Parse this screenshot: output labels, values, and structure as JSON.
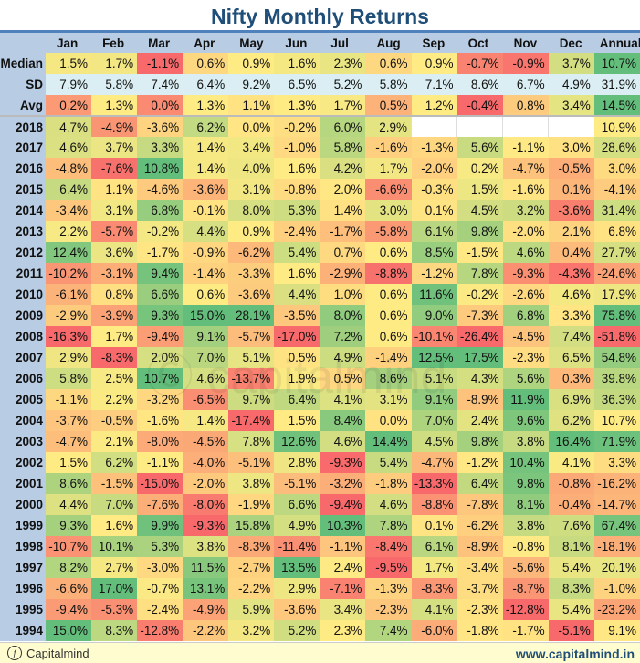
{
  "title": "Nifty Monthly Returns",
  "footer": {
    "brand": "Capitalmind",
    "url": "www.capitalmind.in"
  },
  "colors": {
    "red": "#F8696B",
    "yellow": "#FFEB84",
    "green": "#63BE7B",
    "sd": "#DAEEF3",
    "header": "#B8CCE4"
  },
  "chart_data": {
    "type": "heatmap",
    "title": "Nifty Monthly Returns",
    "unit": "%",
    "columns": [
      "Jan",
      "Feb",
      "Mar",
      "Apr",
      "May",
      "Jun",
      "Jul",
      "Aug",
      "Sep",
      "Oct",
      "Nov",
      "Dec",
      "Annual"
    ],
    "summary": [
      {
        "label": "Median",
        "values": [
          1.5,
          1.7,
          -1.1,
          0.6,
          0.9,
          1.6,
          2.3,
          0.6,
          0.9,
          -0.7,
          -0.9,
          3.7,
          10.7
        ]
      },
      {
        "label": "SD",
        "values": [
          7.9,
          5.8,
          7.4,
          6.4,
          9.2,
          6.5,
          5.2,
          5.8,
          7.1,
          8.6,
          6.7,
          4.9,
          31.9
        ]
      },
      {
        "label": "Avg",
        "values": [
          0.2,
          1.3,
          0.0,
          1.3,
          1.1,
          1.3,
          1.7,
          0.5,
          1.2,
          -0.4,
          0.8,
          3.4,
          14.5
        ]
      }
    ],
    "rows": [
      {
        "label": "2018",
        "values": [
          4.7,
          -4.9,
          -3.6,
          6.2,
          0.0,
          -0.2,
          6.0,
          2.9,
          null,
          null,
          null,
          null,
          10.9
        ]
      },
      {
        "label": "2017",
        "values": [
          4.6,
          3.7,
          3.3,
          1.4,
          3.4,
          -1.0,
          5.8,
          -1.6,
          -1.3,
          5.6,
          -1.1,
          3.0,
          28.6
        ]
      },
      {
        "label": "2016",
        "values": [
          -4.8,
          -7.6,
          10.8,
          1.4,
          4.0,
          1.6,
          4.2,
          1.7,
          -2.0,
          0.2,
          -4.7,
          -0.5,
          3.0
        ]
      },
      {
        "label": "2015",
        "values": [
          6.4,
          1.1,
          -4.6,
          -3.6,
          3.1,
          -0.8,
          2.0,
          -6.6,
          -0.3,
          1.5,
          -1.6,
          0.1,
          -4.1
        ]
      },
      {
        "label": "2014",
        "values": [
          -3.4,
          3.1,
          6.8,
          -0.1,
          8.0,
          5.3,
          1.4,
          3.0,
          0.1,
          4.5,
          3.2,
          -3.6,
          31.4
        ]
      },
      {
        "label": "2013",
        "values": [
          2.2,
          -5.7,
          -0.2,
          4.4,
          0.9,
          -2.4,
          -1.7,
          -5.8,
          6.1,
          9.8,
          -2.0,
          2.1,
          6.8
        ]
      },
      {
        "label": "2012",
        "values": [
          12.4,
          3.6,
          -1.7,
          -0.9,
          -6.2,
          5.4,
          0.7,
          0.6,
          8.5,
          -1.5,
          4.6,
          0.4,
          27.7
        ]
      },
      {
        "label": "2011",
        "values": [
          -10.2,
          -3.1,
          9.4,
          -1.4,
          -3.3,
          1.6,
          -2.9,
          -8.8,
          -1.2,
          7.8,
          -9.3,
          -4.3,
          -24.6
        ]
      },
      {
        "label": "2010",
        "values": [
          -6.1,
          0.8,
          6.6,
          0.6,
          -3.6,
          4.4,
          1.0,
          0.6,
          11.6,
          -0.2,
          -2.6,
          4.6,
          17.9
        ]
      },
      {
        "label": "2009",
        "values": [
          -2.9,
          -3.9,
          9.3,
          15.0,
          28.1,
          -3.5,
          8.0,
          0.6,
          9.0,
          -7.3,
          6.8,
          3.3,
          75.8
        ]
      },
      {
        "label": "2008",
        "values": [
          -16.3,
          1.7,
          -9.4,
          9.1,
          -5.7,
          -17.0,
          7.2,
          0.6,
          -10.1,
          -26.4,
          -4.5,
          7.4,
          -51.8
        ]
      },
      {
        "label": "2007",
        "values": [
          2.9,
          -8.3,
          2.0,
          7.0,
          5.1,
          0.5,
          4.9,
          -1.4,
          12.5,
          17.5,
          -2.3,
          6.5,
          54.8
        ]
      },
      {
        "label": "2006",
        "values": [
          5.8,
          2.5,
          10.7,
          4.6,
          -13.7,
          1.9,
          0.5,
          8.6,
          5.1,
          4.3,
          5.6,
          0.3,
          39.8
        ]
      },
      {
        "label": "2005",
        "values": [
          -1.1,
          2.2,
          -3.2,
          -6.5,
          9.7,
          6.4,
          4.1,
          3.1,
          9.1,
          -8.9,
          11.9,
          6.9,
          36.3
        ]
      },
      {
        "label": "2004",
        "values": [
          -3.7,
          -0.5,
          -1.6,
          1.4,
          -17.4,
          1.5,
          8.4,
          0.0,
          7.0,
          2.4,
          9.6,
          6.2,
          10.7
        ]
      },
      {
        "label": "2003",
        "values": [
          -4.7,
          2.1,
          -8.0,
          -4.5,
          7.8,
          12.6,
          4.6,
          14.4,
          4.5,
          9.8,
          3.8,
          16.4,
          71.9
        ]
      },
      {
        "label": "2002",
        "values": [
          1.5,
          6.2,
          -1.1,
          -4.0,
          -5.1,
          2.8,
          -9.3,
          5.4,
          -4.7,
          -1.2,
          10.4,
          4.1,
          3.3
        ]
      },
      {
        "label": "2001",
        "values": [
          8.6,
          -1.5,
          -15.0,
          -2.0,
          3.8,
          -5.1,
          -3.2,
          -1.8,
          -13.3,
          6.4,
          9.8,
          -0.8,
          -16.2
        ]
      },
      {
        "label": "2000",
        "values": [
          4.4,
          7.0,
          -7.6,
          -8.0,
          -1.9,
          6.6,
          -9.4,
          4.6,
          -8.8,
          -7.8,
          8.1,
          -0.4,
          -14.7
        ]
      },
      {
        "label": "1999",
        "values": [
          9.3,
          1.6,
          9.9,
          -9.3,
          15.8,
          4.9,
          10.3,
          7.8,
          0.1,
          -6.2,
          3.8,
          7.6,
          67.4
        ]
      },
      {
        "label": "1998",
        "values": [
          -10.7,
          10.1,
          5.3,
          3.8,
          -8.3,
          -11.4,
          -1.1,
          -8.4,
          6.1,
          -8.9,
          -0.8,
          8.1,
          -18.1
        ]
      },
      {
        "label": "1997",
        "values": [
          8.2,
          2.7,
          -3.0,
          11.5,
          -2.7,
          13.5,
          2.4,
          -9.5,
          1.7,
          -3.4,
          -5.6,
          5.4,
          20.1
        ]
      },
      {
        "label": "1996",
        "values": [
          -6.6,
          17.0,
          -0.7,
          13.1,
          -2.2,
          2.9,
          -7.1,
          -1.3,
          -8.3,
          -3.7,
          -8.7,
          8.3,
          -1.0
        ]
      },
      {
        "label": "1995",
        "values": [
          -9.4,
          -5.3,
          -2.4,
          -4.9,
          5.9,
          -3.6,
          3.4,
          -2.3,
          4.1,
          -2.3,
          -12.8,
          5.4,
          -23.2
        ]
      },
      {
        "label": "1994",
        "values": [
          15.0,
          8.3,
          -12.8,
          -2.2,
          3.2,
          5.2,
          2.3,
          7.4,
          -6.0,
          -1.8,
          -1.7,
          -5.1,
          9.1
        ]
      }
    ]
  }
}
